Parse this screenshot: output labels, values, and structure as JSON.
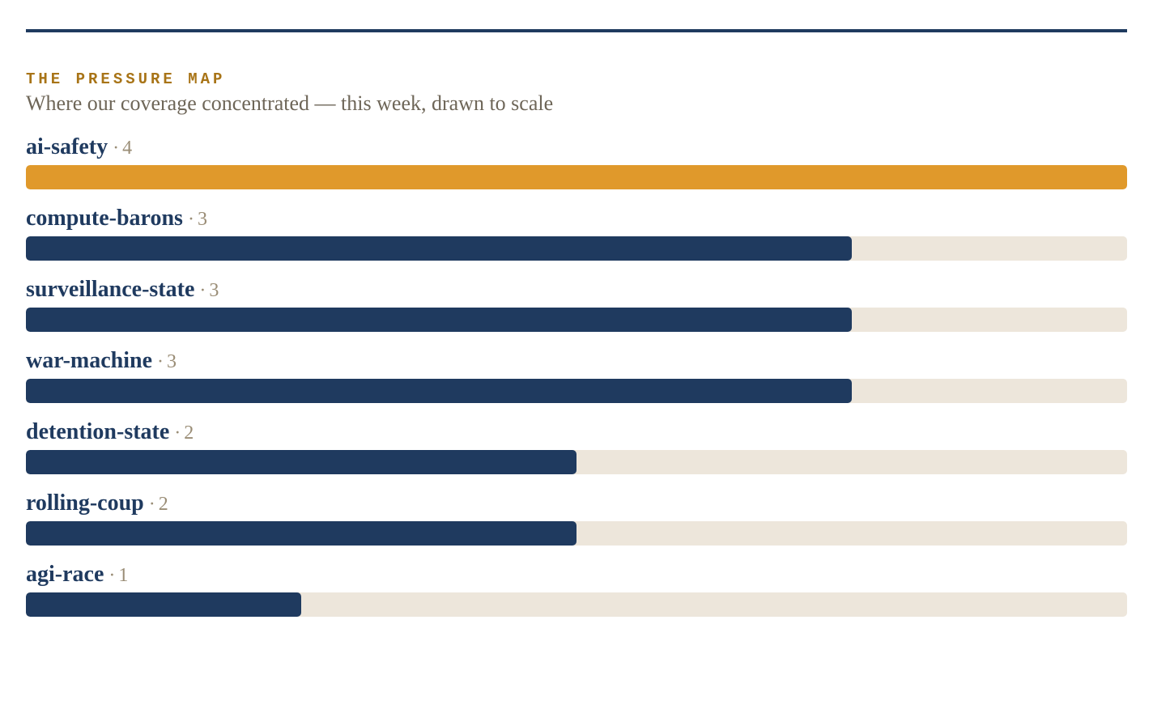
{
  "header": {
    "kicker": "THE PRESSURE MAP",
    "subtitle": "Where our coverage concentrated — this week, drawn to scale"
  },
  "colors": {
    "rule": "#1f3a5f",
    "kicker": "#a87417",
    "bar_fill": "#1f3a5f",
    "bar_highlight": "#e0992b",
    "track": "#ede6db",
    "count": "#9a8d76"
  },
  "chart_data": {
    "type": "bar",
    "orientation": "horizontal",
    "title": "THE PRESSURE MAP",
    "subtitle": "Where our coverage concentrated — this week, drawn to scale",
    "xlim": [
      0,
      4
    ],
    "separator": "·",
    "categories": [
      "ai-safety",
      "compute-barons",
      "surveillance-state",
      "war-machine",
      "detention-state",
      "rolling-coup",
      "agi-race"
    ],
    "values": [
      4,
      3,
      3,
      3,
      2,
      2,
      1
    ],
    "highlight_index": 0
  }
}
